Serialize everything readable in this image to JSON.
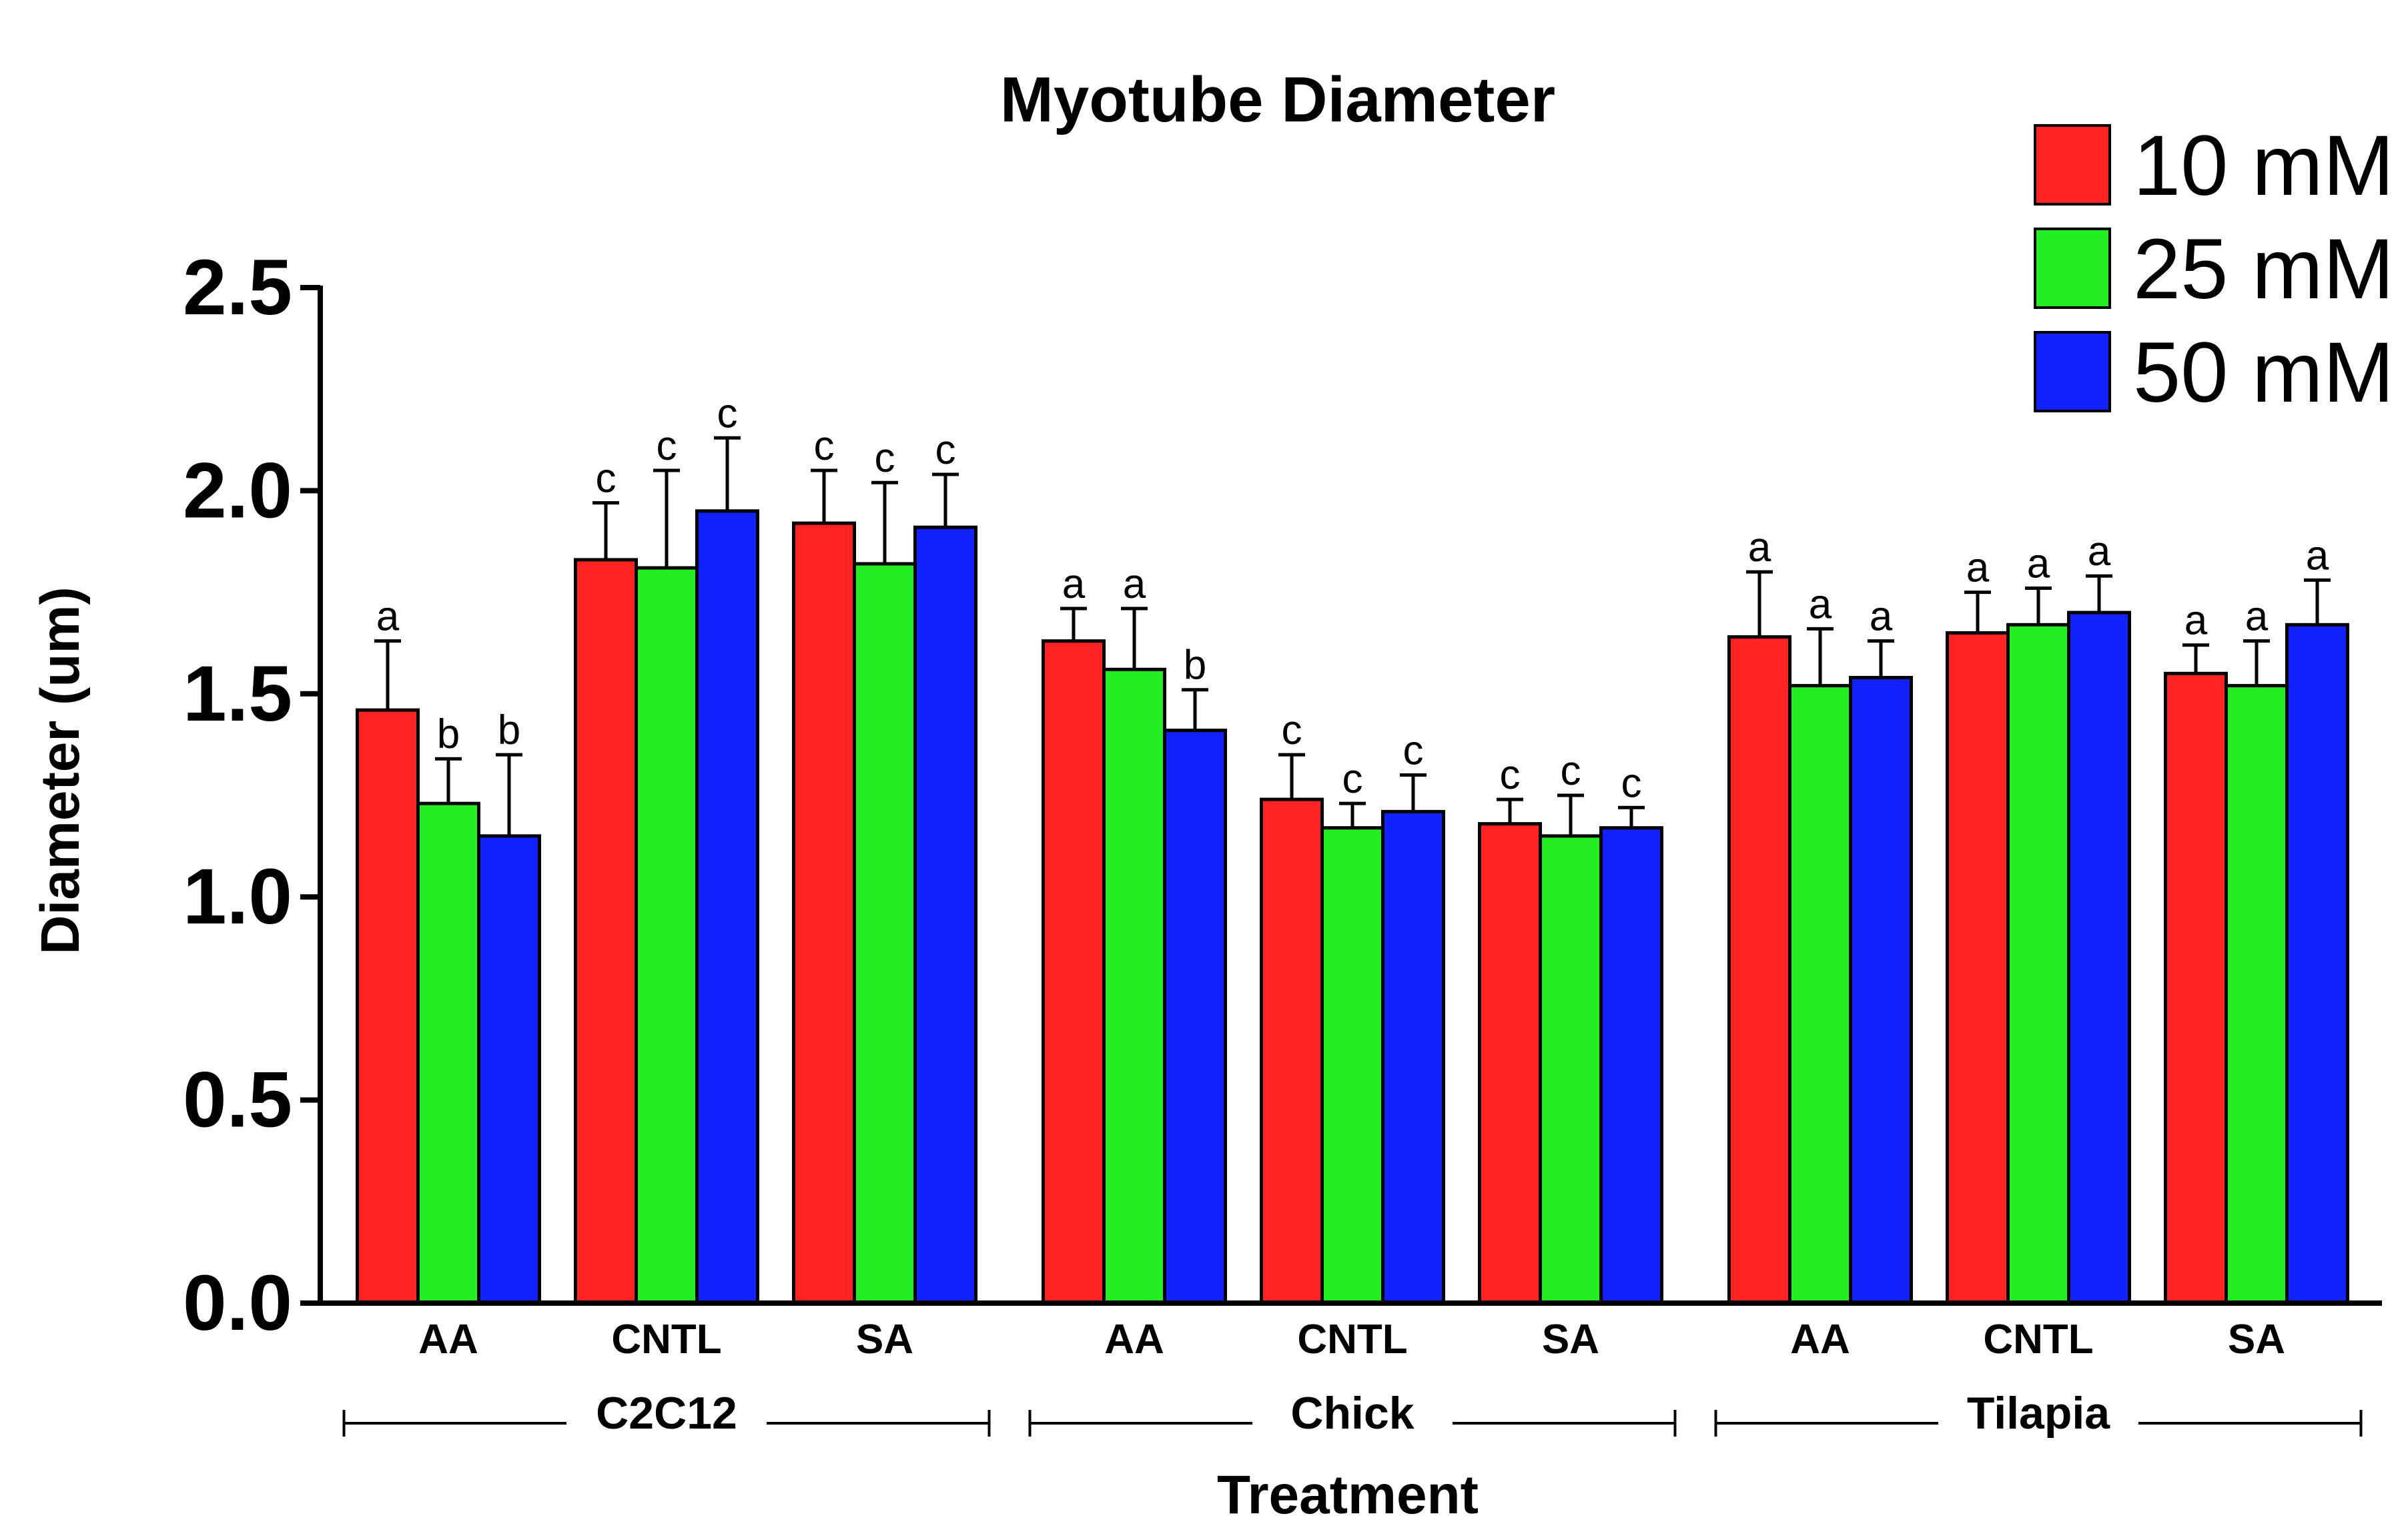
{
  "chart_data": {
    "type": "bar",
    "title": "Myotube Diameter",
    "xlabel": "Treatment",
    "ylabel": "Diameter (um)",
    "ylim": [
      0,
      2.5
    ],
    "yticks": [
      "0.0",
      "0.5",
      "1.0",
      "1.5",
      "2.0",
      "2.5"
    ],
    "legend_position": "top-right",
    "groups": [
      {
        "name": "C2C12",
        "categories": [
          {
            "label": "AA",
            "values": [
              1.46,
              1.23,
              1.15
            ],
            "errors": [
              0.17,
              0.11,
              0.2
            ],
            "letters": [
              "a",
              "b",
              "b"
            ]
          },
          {
            "label": "CNTL",
            "values": [
              1.83,
              1.81,
              1.95
            ],
            "errors": [
              0.14,
              0.24,
              0.18
            ],
            "letters": [
              "c",
              "c",
              "c"
            ]
          },
          {
            "label": "SA",
            "values": [
              1.92,
              1.82,
              1.91
            ],
            "errors": [
              0.13,
              0.2,
              0.13
            ],
            "letters": [
              "c",
              "c",
              "c"
            ]
          }
        ]
      },
      {
        "name": "Chick",
        "categories": [
          {
            "label": "AA",
            "values": [
              1.63,
              1.56,
              1.41
            ],
            "errors": [
              0.08,
              0.15,
              0.1
            ],
            "letters": [
              "a",
              "a",
              "b"
            ]
          },
          {
            "label": "CNTL",
            "values": [
              1.24,
              1.17,
              1.21
            ],
            "errors": [
              0.11,
              0.06,
              0.09
            ],
            "letters": [
              "c",
              "c",
              "c"
            ]
          },
          {
            "label": "SA",
            "values": [
              1.18,
              1.15,
              1.17
            ],
            "errors": [
              0.06,
              0.1,
              0.05
            ],
            "letters": [
              "c",
              "c",
              "c"
            ]
          }
        ]
      },
      {
        "name": "Tilapia",
        "categories": [
          {
            "label": "AA",
            "values": [
              1.64,
              1.52,
              1.54
            ],
            "errors": [
              0.16,
              0.14,
              0.09
            ],
            "letters": [
              "a",
              "a",
              "a"
            ]
          },
          {
            "label": "CNTL",
            "values": [
              1.65,
              1.67,
              1.7
            ],
            "errors": [
              0.1,
              0.09,
              0.09
            ],
            "letters": [
              "a",
              "a",
              "a"
            ]
          },
          {
            "label": "SA",
            "values": [
              1.55,
              1.52,
              1.67
            ],
            "errors": [
              0.07,
              0.11,
              0.11
            ],
            "letters": [
              "a",
              "a",
              "a"
            ]
          }
        ]
      }
    ],
    "series": [
      {
        "name": "10 mM",
        "color": "#ff2222"
      },
      {
        "name": "25 mM",
        "color": "#22ee22"
      },
      {
        "name": "50 mM",
        "color": "#1122ff"
      }
    ]
  }
}
